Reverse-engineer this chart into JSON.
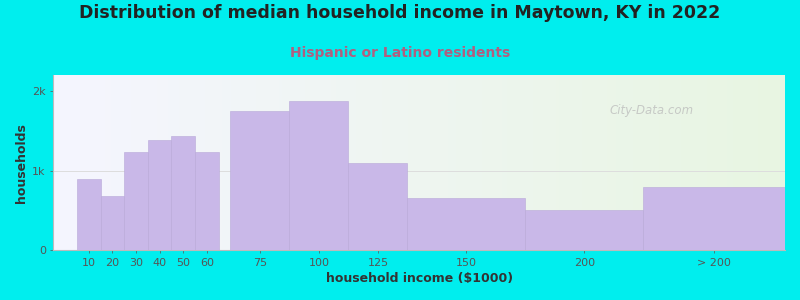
{
  "title": "Distribution of median household income in Maytown, KY in 2022",
  "subtitle": "Hispanic or Latino residents",
  "xlabel": "household income ($1000)",
  "ylabel": "households",
  "background_outer": "#00EEEE",
  "background_inner_left": "#e8f5e2",
  "background_inner_right": "#f5f5ff",
  "bar_color": "#c9b8e8",
  "bar_edge_color": "#b8a8d8",
  "title_fontsize": 12.5,
  "title_color": "#222222",
  "subtitle_fontsize": 10,
  "subtitle_color": "#b06080",
  "xlabel_fontsize": 9,
  "ylabel_fontsize": 9,
  "watermark": "City-Data.com",
  "categories": [
    "10",
    "20",
    "30",
    "40",
    "50",
    "60",
    "75",
    "100",
    "125",
    "150",
    "200",
    "> 200"
  ],
  "x_positions": [
    10,
    20,
    30,
    40,
    50,
    60,
    75,
    100,
    125,
    150,
    200,
    250
  ],
  "bar_widths": [
    10,
    10,
    10,
    10,
    10,
    10,
    25,
    25,
    25,
    50,
    50,
    60
  ],
  "values": [
    900,
    680,
    1230,
    1380,
    1430,
    1230,
    1750,
    1870,
    1100,
    650,
    500,
    790
  ],
  "ylim": [
    0,
    2200
  ],
  "yticks": [
    0,
    1000,
    2000
  ],
  "ytick_labels": [
    "0",
    "1k",
    "2k"
  ],
  "xlim": [
    0,
    310
  ],
  "hline_y": 1000,
  "hline_color": "#dddddd"
}
